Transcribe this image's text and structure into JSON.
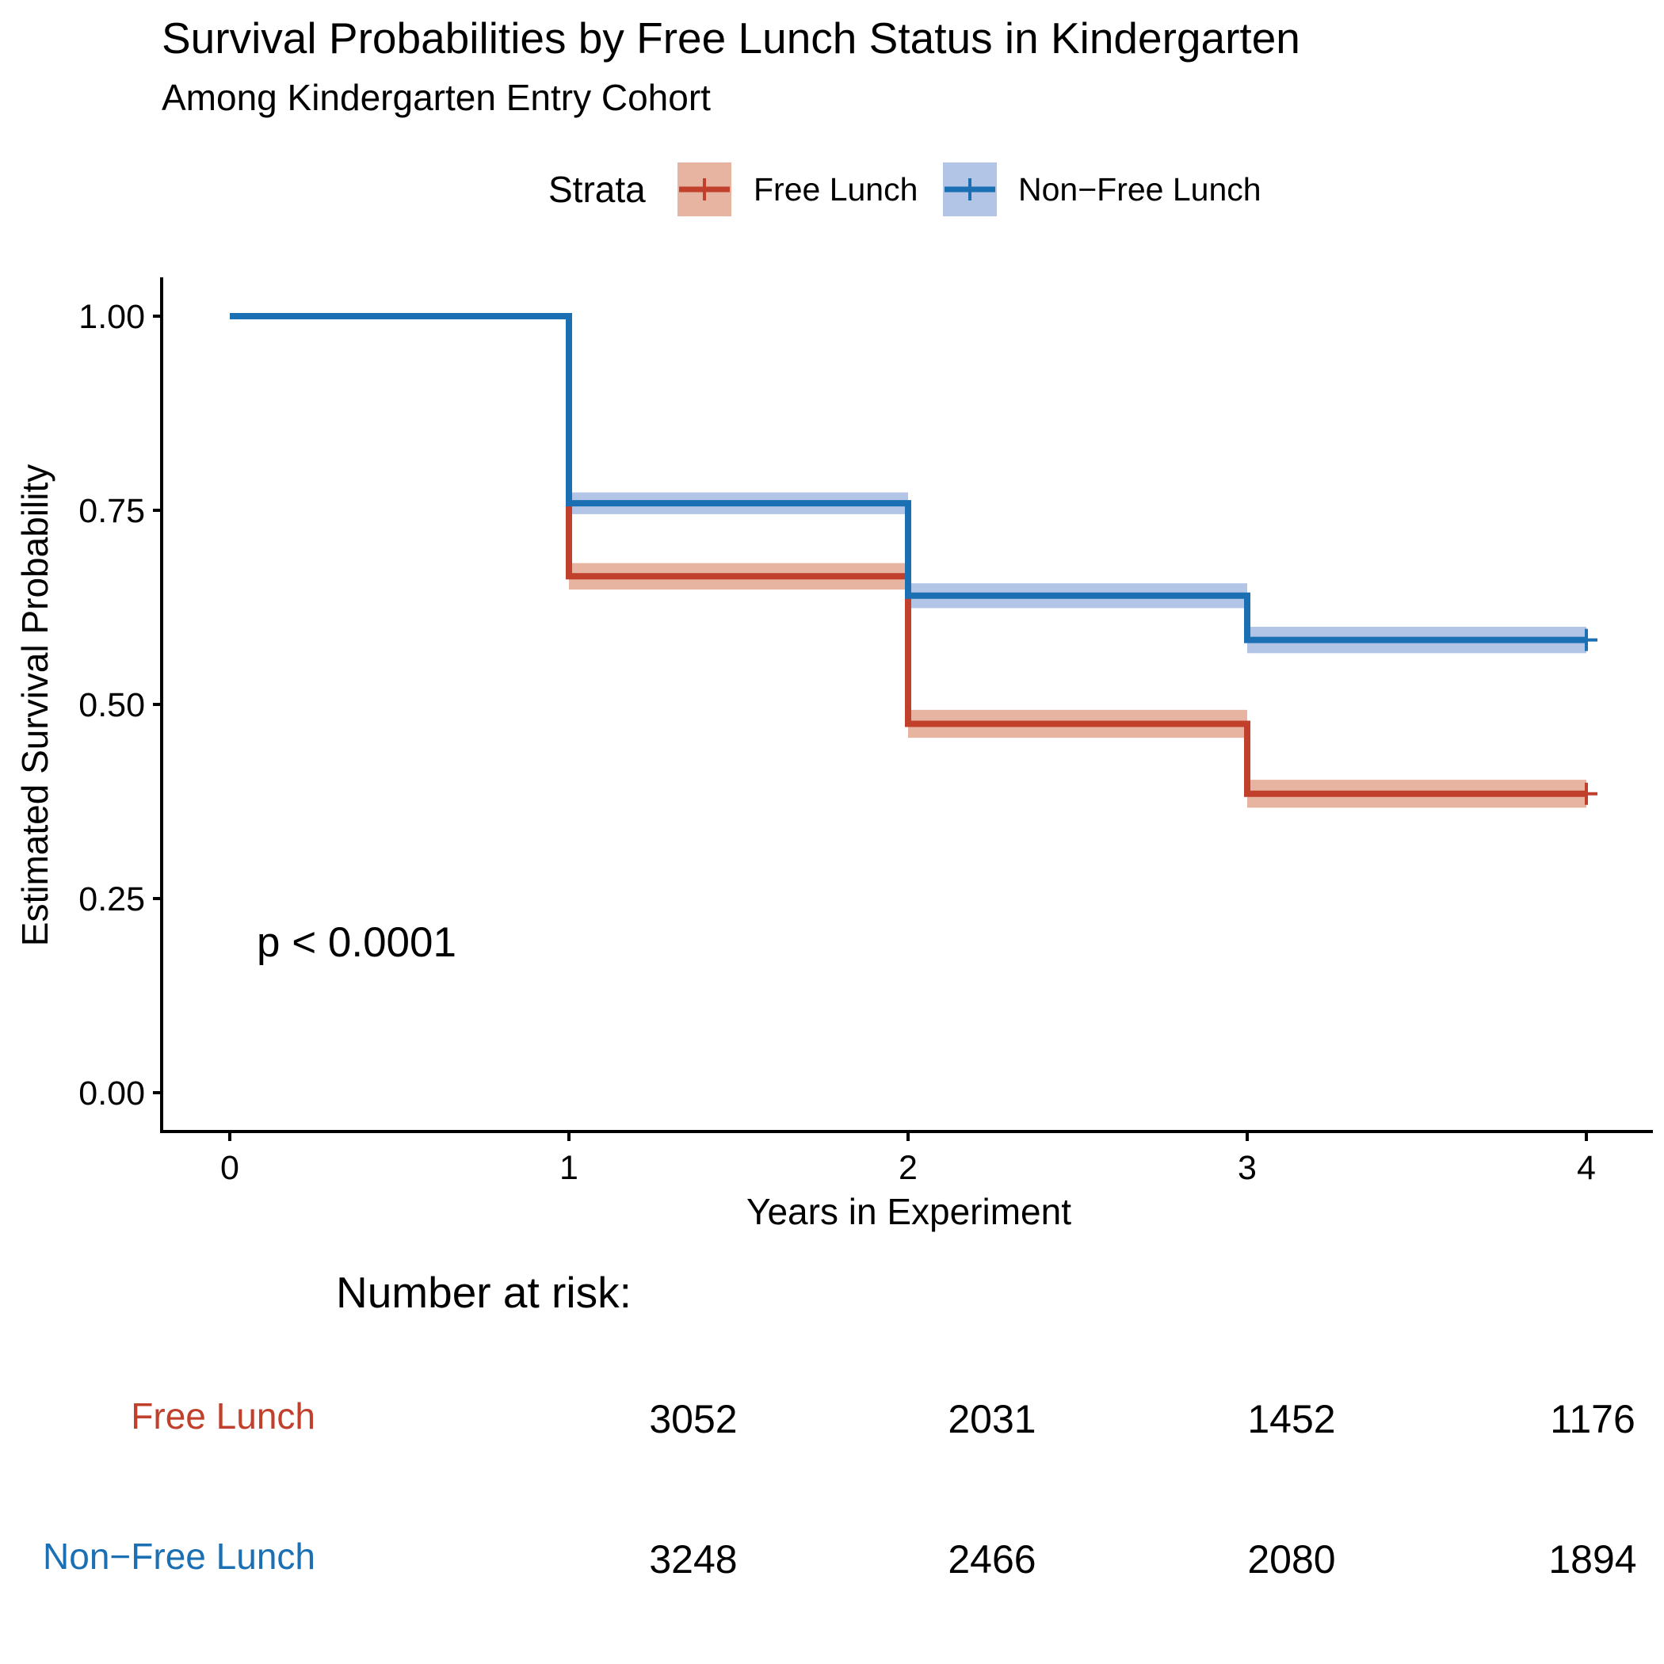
{
  "chart_data": {
    "type": "line",
    "subtype": "kaplan-meier step",
    "title": "Survival Probabilities by Free Lunch Status in Kindergarten",
    "subtitle": "Among Kindergarten Entry Cohort",
    "xlabel": "Years in Experiment",
    "ylabel": "Estimated Survival Probability",
    "xlim": [
      -0.2,
      4.2
    ],
    "ylim": [
      -0.05,
      1.05
    ],
    "x_ticks": [
      0,
      1,
      2,
      3,
      4
    ],
    "x_tick_labels": [
      "0",
      "1",
      "2",
      "3",
      "4"
    ],
    "y_ticks": [
      0,
      0.25,
      0.5,
      0.75,
      1
    ],
    "y_tick_labels": [
      "0.00",
      "0.25",
      "0.50",
      "0.75",
      "1.00"
    ],
    "grid": false,
    "legend": {
      "title": "Strata",
      "position": "top",
      "entries": [
        "Free Lunch",
        "Non−Free Lunch"
      ]
    },
    "series": [
      {
        "name": "Free Lunch",
        "color": "#c0402c",
        "ci_color": "#e7b4a2",
        "x": [
          0,
          1,
          2,
          3,
          4
        ],
        "y": [
          1.0,
          0.665,
          0.475,
          0.385,
          0.385
        ],
        "ci_lower": [
          1.0,
          0.648,
          0.457,
          0.367,
          0.367
        ],
        "ci_upper": [
          1.0,
          0.682,
          0.493,
          0.403,
          0.403
        ]
      },
      {
        "name": "Non−Free Lunch",
        "color": "#1b6fb3",
        "ci_color": "#b3c5e6",
        "x": [
          0,
          1,
          2,
          3,
          4
        ],
        "y": [
          1.0,
          0.759,
          0.64,
          0.583,
          0.583
        ],
        "ci_lower": [
          1.0,
          0.745,
          0.624,
          0.566,
          0.566
        ],
        "ci_upper": [
          1.0,
          0.773,
          0.656,
          0.6,
          0.6
        ]
      }
    ],
    "annotation": "p < 0.0001",
    "risk_table": {
      "title": "Number at risk:",
      "columns": [
        1,
        2,
        3,
        4
      ],
      "rows": [
        {
          "name": "Free Lunch",
          "values": [
            "3052",
            "2031",
            "1452",
            "1176"
          ]
        },
        {
          "name": "Non−Free Lunch",
          "values": [
            "3248",
            "2466",
            "2080",
            "1894"
          ]
        }
      ]
    }
  }
}
